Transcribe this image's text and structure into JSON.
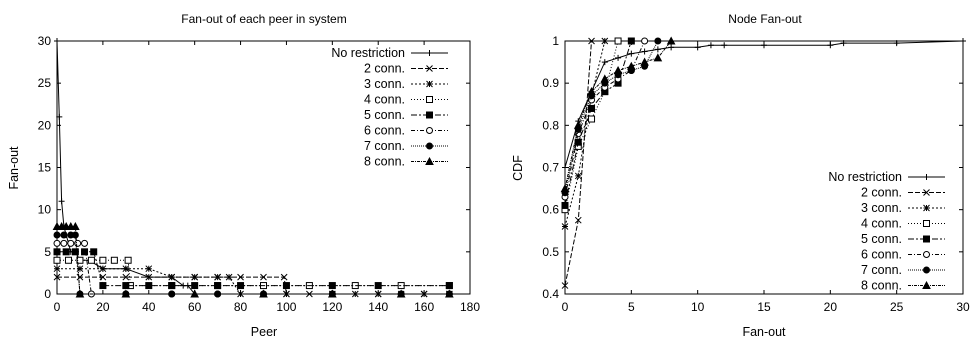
{
  "chart_data": [
    {
      "type": "line",
      "title": "Fan-out of each peer in system",
      "xlabel": "Peer",
      "ylabel": "Fan-out",
      "xlim": [
        0,
        180
      ],
      "ylim": [
        0,
        30
      ],
      "xticks": [
        "0",
        "20",
        "40",
        "60",
        "80",
        "100",
        "120",
        "140",
        "160",
        "180"
      ],
      "yticks": [
        "0",
        "5",
        "10",
        "15",
        "20",
        "25",
        "30"
      ],
      "grid": false,
      "legend": "top-right",
      "series": [
        {
          "name": "No restriction",
          "marker": "plus",
          "dash": "",
          "x": [
            0,
            1,
            2,
            3,
            4,
            5,
            6,
            8,
            10,
            14,
            20,
            30,
            40,
            50,
            55,
            57,
            60,
            70,
            80,
            100,
            130,
            171
          ],
          "y": [
            30,
            21,
            11,
            8,
            7,
            6,
            5,
            5,
            4,
            4,
            3,
            3,
            2,
            2,
            1,
            1,
            0,
            0,
            0,
            0,
            0,
            0
          ]
        },
        {
          "name": "2 conn.",
          "marker": "x",
          "dash": "5,2",
          "x": [
            0,
            10,
            20,
            30,
            40,
            50,
            60,
            70,
            80,
            90,
            99,
            100,
            110,
            120,
            130,
            140,
            150,
            160,
            171
          ],
          "y": [
            2,
            2,
            2,
            2,
            2,
            2,
            2,
            2,
            2,
            2,
            2,
            0,
            0,
            0,
            0,
            0,
            0,
            0,
            0
          ]
        },
        {
          "name": "3 conn.",
          "marker": "star",
          "dash": "2,2",
          "x": [
            0,
            10,
            20,
            30,
            40,
            50,
            60,
            70,
            75,
            80,
            100,
            120,
            140,
            160,
            171
          ],
          "y": [
            3,
            3,
            3,
            3,
            3,
            2,
            2,
            2,
            2,
            0,
            0,
            0,
            0,
            0,
            0
          ]
        },
        {
          "name": "4 conn.",
          "marker": "square-open",
          "dash": "1,2",
          "x": [
            0,
            5,
            10,
            15,
            20,
            25,
            31,
            32,
            50,
            70,
            90,
            110,
            130,
            150,
            171
          ],
          "y": [
            4,
            4,
            4,
            4,
            4,
            4,
            4,
            1,
            1,
            1,
            1,
            1,
            1,
            1,
            1
          ]
        },
        {
          "name": "5 conn.",
          "marker": "square-filled",
          "dash": "6,2,2,2",
          "x": [
            0,
            4,
            8,
            12,
            16,
            20,
            30,
            40,
            50,
            60,
            70,
            80,
            100,
            120,
            140,
            171
          ],
          "y": [
            5,
            5,
            5,
            5,
            5,
            1,
            1,
            1,
            1,
            1,
            1,
            1,
            1,
            1,
            1,
            1
          ]
        },
        {
          "name": "6 conn.",
          "marker": "circle-open",
          "dash": "4,2,1,2",
          "x": [
            0,
            3,
            6,
            9,
            12,
            15,
            30,
            50,
            70,
            90,
            120,
            150,
            171
          ],
          "y": [
            6,
            6,
            6,
            6,
            6,
            0,
            0,
            0,
            0,
            0,
            0,
            0,
            0
          ]
        },
        {
          "name": "7 conn.",
          "marker": "circle-filled",
          "dash": "1,1",
          "x": [
            0,
            3,
            6,
            8,
            10,
            30,
            50,
            70,
            90,
            120,
            150,
            171
          ],
          "y": [
            7,
            7,
            7,
            7,
            0,
            0,
            0,
            0,
            0,
            0,
            0,
            0
          ]
        },
        {
          "name": "8 conn.",
          "marker": "triangle",
          "dash": "3,1,1,1",
          "x": [
            0,
            2,
            4,
            6,
            8,
            10,
            30,
            60,
            90,
            120,
            150,
            171
          ],
          "y": [
            8,
            8,
            8,
            8,
            8,
            0,
            0,
            0,
            0,
            0,
            0,
            0
          ]
        }
      ]
    },
    {
      "type": "line",
      "title": "Node Fan-out",
      "xlabel": "Fan-out",
      "ylabel": "CDF",
      "xlim": [
        0,
        30
      ],
      "ylim": [
        0.4,
        1.0
      ],
      "xticks": [
        "0",
        "5",
        "10",
        "15",
        "20",
        "25",
        "30"
      ],
      "yticks": [
        "0.4",
        "0.5",
        "0.6",
        "0.7",
        "0.8",
        "0.9",
        "1"
      ],
      "grid": false,
      "legend": "bottom-right",
      "series": [
        {
          "name": "No restriction",
          "marker": "plus",
          "dash": "",
          "x": [
            0,
            1,
            2,
            3,
            4,
            5,
            6,
            7,
            8,
            10,
            11,
            12,
            15,
            20,
            21,
            25,
            30
          ],
          "y": [
            0.7,
            0.81,
            0.88,
            0.95,
            0.96,
            0.97,
            0.975,
            0.98,
            0.985,
            0.985,
            0.99,
            0.99,
            0.99,
            0.99,
            0.995,
            0.995,
            1.0
          ]
        },
        {
          "name": "2 conn.",
          "marker": "x",
          "dash": "5,2",
          "x": [
            0,
            1,
            2
          ],
          "y": [
            0.42,
            0.575,
            1.0
          ]
        },
        {
          "name": "3 conn.",
          "marker": "star",
          "dash": "2,2",
          "x": [
            0,
            1,
            2,
            3
          ],
          "y": [
            0.56,
            0.68,
            0.87,
            1.0
          ]
        },
        {
          "name": "4 conn.",
          "marker": "square-open",
          "dash": "1,2",
          "x": [
            0,
            1,
            2,
            3,
            4
          ],
          "y": [
            0.6,
            0.75,
            0.815,
            0.88,
            1.0
          ]
        },
        {
          "name": "5 conn.",
          "marker": "square-filled",
          "dash": "6,2,2,2",
          "x": [
            0,
            1,
            2,
            3,
            4,
            5
          ],
          "y": [
            0.61,
            0.76,
            0.84,
            0.88,
            0.9,
            1.0
          ]
        },
        {
          "name": "6 conn.",
          "marker": "circle-open",
          "dash": "4,2,1,2",
          "x": [
            0,
            1,
            2,
            3,
            4,
            5,
            6
          ],
          "y": [
            0.63,
            0.78,
            0.86,
            0.89,
            0.91,
            0.93,
            1.0
          ]
        },
        {
          "name": "7 conn.",
          "marker": "circle-filled",
          "dash": "1,1",
          "x": [
            0,
            1,
            2,
            3,
            4,
            5,
            6,
            7
          ],
          "y": [
            0.64,
            0.79,
            0.87,
            0.9,
            0.92,
            0.93,
            0.94,
            1.0
          ]
        },
        {
          "name": "8 conn.",
          "marker": "triangle",
          "dash": "3,1,1,1",
          "x": [
            0,
            1,
            2,
            3,
            4,
            5,
            6,
            7,
            8
          ],
          "y": [
            0.65,
            0.8,
            0.88,
            0.91,
            0.93,
            0.94,
            0.95,
            0.96,
            1.0
          ]
        }
      ]
    }
  ]
}
